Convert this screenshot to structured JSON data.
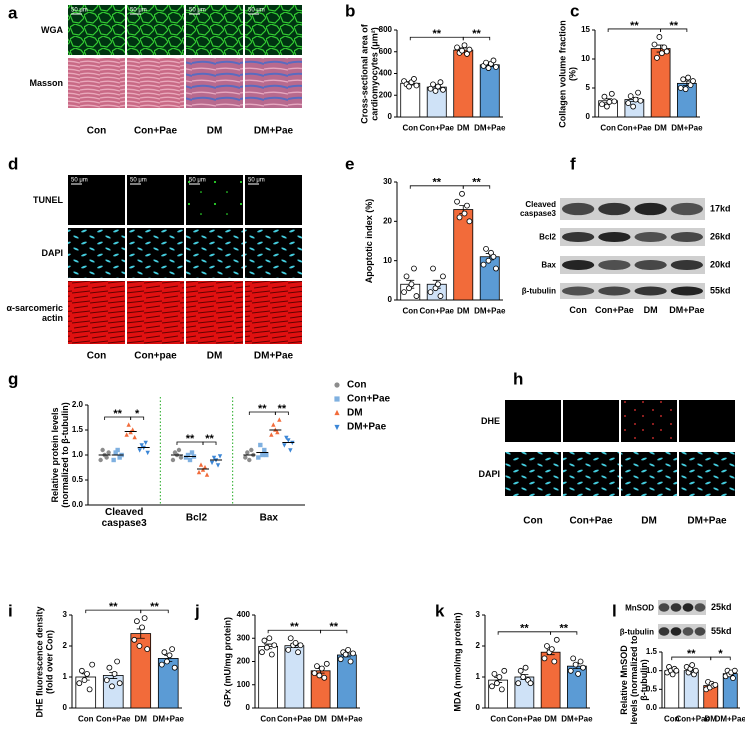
{
  "image_panels": {
    "a": {
      "panel": "a",
      "rows": [
        "WGA",
        "Masson"
      ],
      "columns": [
        "Con",
        "Con+Pae",
        "DM",
        "DM+Pae"
      ],
      "scale_bar": "50 μm"
    },
    "d": {
      "panel": "d",
      "rows": [
        "TUNEL",
        "DAPI",
        "α-sarcomeric actin"
      ],
      "columns": [
        "Con",
        "Con+pae",
        "DM",
        "DM+Pae"
      ],
      "scale_bar": "50 μm"
    },
    "f": {
      "panel": "f",
      "bands": [
        "Cleaved caspase3",
        "Bcl2",
        "Bax",
        "β-tubulin"
      ],
      "sizes": [
        "17kd",
        "26kd",
        "20kd",
        "55kd"
      ],
      "columns": [
        "Con",
        "Con+Pae",
        "DM",
        "DM+Pae"
      ]
    },
    "h": {
      "panel": "h",
      "rows": [
        "DHE",
        "DAPI"
      ],
      "columns": [
        "Con",
        "Con+Pae",
        "DM",
        "DM+Pae"
      ]
    },
    "l": {
      "bands": [
        "MnSOD",
        "β-tubulin"
      ],
      "sizes": [
        "25kd",
        "55kd"
      ]
    }
  },
  "chart_data": [
    {
      "panel": "b",
      "type": "bar",
      "ylabel": "Cross-sectional area of cardiomyocytes (μm²)",
      "categories": [
        "Con",
        "Con+Pae",
        "DM",
        "DM+Pae"
      ],
      "values": [
        310,
        275,
        615,
        480
      ],
      "errors": [
        15,
        18,
        20,
        15
      ],
      "points": [
        [
          330,
          300,
          280,
          320,
          350,
          290
        ],
        [
          260,
          300,
          240,
          280,
          320,
          250
        ],
        [
          640,
          590,
          610,
          660,
          580,
          620
        ],
        [
          470,
          500,
          450,
          490,
          520,
          460
        ]
      ],
      "colors": [
        "#ffffff",
        "#cfe2f7",
        "#f26b3a",
        "#5b9bd5"
      ],
      "ylim": [
        0,
        800
      ],
      "yticks": [
        0,
        200,
        400,
        600,
        800
      ],
      "significance": [
        "**",
        "**"
      ]
    },
    {
      "panel": "c",
      "type": "bar",
      "ylabel": "Collagen volume fraction (%)",
      "categories": [
        "Con",
        "Con+Pae",
        "DM",
        "DM+Pae"
      ],
      "values": [
        2.8,
        3.0,
        11.8,
        5.8
      ],
      "errors": [
        0.35,
        0.35,
        0.6,
        0.4
      ],
      "points": [
        [
          2.2,
          3.5,
          1.8,
          2.6,
          4.0,
          2.7
        ],
        [
          2.4,
          3.6,
          1.8,
          3.0,
          4.2,
          2.8
        ],
        [
          12.5,
          10.2,
          13.8,
          11.0,
          12.0,
          11.3
        ],
        [
          5.0,
          6.5,
          4.8,
          6.8,
          5.5,
          6.2
        ]
      ],
      "colors": [
        "#ffffff",
        "#cfe2f7",
        "#f26b3a",
        "#5b9bd5"
      ],
      "ylim": [
        0,
        15
      ],
      "yticks": [
        0,
        5,
        10,
        15
      ],
      "significance": [
        "**",
        "**"
      ]
    },
    {
      "panel": "e",
      "type": "bar",
      "ylabel": "Apoptotic index (%)",
      "categories": [
        "Con",
        "Con+Pae",
        "DM",
        "DM+Pae"
      ],
      "values": [
        4,
        4,
        23,
        11
      ],
      "errors": [
        1,
        1,
        1,
        0.8
      ],
      "points": [
        [
          2,
          6,
          3,
          4,
          8,
          1
        ],
        [
          2,
          8,
          3,
          4,
          1,
          6
        ],
        [
          25,
          21,
          27,
          22,
          24,
          20
        ],
        [
          9,
          13,
          10,
          12,
          11,
          8
        ]
      ],
      "colors": [
        "#ffffff",
        "#cfe2f7",
        "#f26b3a",
        "#5b9bd5"
      ],
      "ylim": [
        0,
        30
      ],
      "yticks": [
        0,
        10,
        20,
        30
      ],
      "significance": [
        "**",
        "**"
      ]
    },
    {
      "panel": "g",
      "type": "dot",
      "ylabel": "Relative protein levels (normalized to β-tubulin)",
      "categories": [
        "Cleaved caspase3",
        "Bcl2",
        "Bax"
      ],
      "series": [
        {
          "name": "Con",
          "color": "#8c8c8c",
          "marker": "circle",
          "values": [
            1.0,
            1.0,
            1.0
          ],
          "points": [
            [
              0.9,
              1.1,
              1.0,
              0.95,
              1.05
            ],
            [
              0.9,
              1.05,
              1.0,
              1.1,
              0.95
            ],
            [
              0.95,
              1.05,
              0.9,
              1.1,
              1.0
            ]
          ]
        },
        {
          "name": "Con+Pae",
          "color": "#7fb0e0",
          "marker": "square",
          "values": [
            1.0,
            0.97,
            1.05
          ],
          "points": [
            [
              0.9,
              1.05,
              1.1,
              0.95,
              1.0
            ],
            [
              0.95,
              1.0,
              0.9,
              1.05,
              0.97
            ],
            [
              0.95,
              1.2,
              1.0,
              1.1,
              1.0
            ]
          ]
        },
        {
          "name": "DM",
          "color": "#f26b3a",
          "marker": "triangle",
          "values": [
            1.47,
            0.72,
            1.5
          ],
          "points": [
            [
              1.4,
              1.6,
              1.45,
              1.5,
              1.35
            ],
            [
              0.65,
              0.8,
              0.7,
              0.75,
              0.6
            ],
            [
              1.4,
              1.6,
              1.5,
              1.45,
              1.7
            ]
          ]
        },
        {
          "name": "DM+Pae",
          "color": "#3b86d6",
          "marker": "triangle-down",
          "values": [
            1.15,
            0.9,
            1.25
          ],
          "points": [
            [
              1.1,
              1.2,
              1.15,
              1.25,
              1.05
            ],
            [
              0.85,
              0.95,
              0.9,
              0.8,
              0.98
            ],
            [
              1.2,
              1.35,
              1.3,
              1.1,
              1.25
            ]
          ]
        }
      ],
      "ylim": [
        0,
        2
      ],
      "yticks": [
        {
          "value": 0,
          "label": "0.0"
        },
        {
          "value": 0.5,
          "label": "0.5"
        },
        {
          "value": 1,
          "label": "1.0"
        },
        {
          "value": 1.5,
          "label": "1.5"
        },
        {
          "value": 2,
          "label": "2.0"
        }
      ],
      "legend": "right",
      "significance": [
        [
          "**",
          "*"
        ],
        [
          "**",
          "**"
        ],
        [
          "**",
          "**"
        ]
      ]
    },
    {
      "panel": "i",
      "type": "bar",
      "ylabel": "DHE fluorescence density (fold over Con)",
      "categories": [
        "Con",
        "Con+Pae",
        "DM",
        "DM+Pae"
      ],
      "values": [
        1.0,
        1.05,
        2.4,
        1.6
      ],
      "errors": [
        0.1,
        0.1,
        0.15,
        0.1
      ],
      "points": [
        [
          0.8,
          1.2,
          0.9,
          1.1,
          0.6,
          1.4
        ],
        [
          0.9,
          1.3,
          0.7,
          1.1,
          1.5,
          0.8
        ],
        [
          2.2,
          2.8,
          2.0,
          2.6,
          2.9,
          1.9
        ],
        [
          1.4,
          1.8,
          1.5,
          1.7,
          1.9,
          1.3
        ]
      ],
      "colors": [
        "#ffffff",
        "#cfe2f7",
        "#f26b3a",
        "#5b9bd5"
      ],
      "ylim": [
        0,
        3
      ],
      "yticks": [
        0,
        1,
        2,
        3
      ],
      "significance": [
        "**",
        "**"
      ]
    },
    {
      "panel": "j",
      "type": "bar",
      "ylabel": "GPx (mU/mg protein)",
      "categories": [
        "Con",
        "Con+Pae",
        "DM",
        "DM+Pae"
      ],
      "values": [
        265,
        268,
        160,
        228
      ],
      "errors": [
        10,
        8,
        10,
        8
      ],
      "points": [
        [
          240,
          290,
          260,
          300,
          230,
          270
        ],
        [
          250,
          300,
          270,
          280,
          240,
          270
        ],
        [
          150,
          180,
          140,
          170,
          130,
          190
        ],
        [
          210,
          240,
          230,
          250,
          200,
          235
        ]
      ],
      "colors": [
        "#ffffff",
        "#cfe2f7",
        "#f26b3a",
        "#5b9bd5"
      ],
      "ylim": [
        0,
        400
      ],
      "yticks": [
        0,
        100,
        200,
        300,
        400
      ],
      "significance": [
        "**",
        "**"
      ]
    },
    {
      "panel": "k",
      "type": "bar",
      "ylabel": "MDA (nmol/mg protein)",
      "categories": [
        "Con",
        "Con+Pae",
        "DM",
        "DM+Pae"
      ],
      "values": [
        0.9,
        1.0,
        1.8,
        1.35
      ],
      "errors": [
        0.08,
        0.08,
        0.08,
        0.08
      ],
      "points": [
        [
          0.7,
          1.1,
          0.8,
          1.0,
          0.6,
          1.2
        ],
        [
          0.8,
          1.2,
          1.0,
          1.3,
          0.9,
          0.8
        ],
        [
          1.6,
          2.0,
          1.8,
          1.9,
          1.5,
          2.2
        ],
        [
          1.2,
          1.6,
          1.4,
          1.1,
          1.5,
          1.3
        ]
      ],
      "colors": [
        "#ffffff",
        "#cfe2f7",
        "#f26b3a",
        "#5b9bd5"
      ],
      "ylim": [
        0,
        3
      ],
      "yticks": [
        0,
        1,
        2,
        3
      ],
      "significance": [
        "**",
        "**"
      ]
    },
    {
      "panel": "l",
      "type": "bar",
      "ylabel": "Relative MnSOD levels (normalized to β-tubulin)",
      "categories": [
        "Con",
        "Con+Pae",
        "DM",
        "DM+Pae"
      ],
      "values": [
        1.0,
        1.0,
        0.6,
        0.92
      ],
      "errors": [
        0.03,
        0.04,
        0.04,
        0.04
      ],
      "points": [
        [
          0.95,
          1.1,
          1.0,
          0.9,
          1.05,
          1.0
        ],
        [
          1.1,
          0.95,
          1.05,
          1.15,
          0.9,
          1.0
        ],
        [
          0.5,
          0.7,
          0.55,
          0.65,
          0.6,
          0.62
        ],
        [
          0.85,
          1.0,
          0.9,
          0.95,
          0.8,
          1.0
        ]
      ],
      "colors": [
        "#ffffff",
        "#cfe2f7",
        "#f26b3a",
        "#5b9bd5"
      ],
      "ylim": [
        0,
        1.5
      ],
      "yticks": [
        {
          "value": 0,
          "label": "0.0"
        },
        {
          "value": 0.5,
          "label": "0.5"
        },
        {
          "value": 1,
          "label": "1.0"
        },
        {
          "value": 1.5,
          "label": "1.5"
        }
      ],
      "significance": [
        "**",
        "*"
      ]
    }
  ]
}
